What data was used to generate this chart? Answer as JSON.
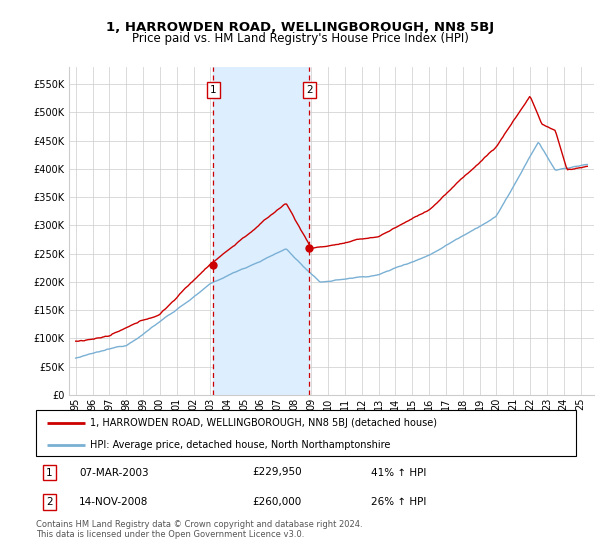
{
  "title": "1, HARROWDEN ROAD, WELLINGBOROUGH, NN8 5BJ",
  "subtitle": "Price paid vs. HM Land Registry's House Price Index (HPI)",
  "legend_line1": "1, HARROWDEN ROAD, WELLINGBOROUGH, NN8 5BJ (detached house)",
  "legend_line2": "HPI: Average price, detached house, North Northamptonshire",
  "footnote": "Contains HM Land Registry data © Crown copyright and database right 2024.\nThis data is licensed under the Open Government Licence v3.0.",
  "sale1_date": "07-MAR-2003",
  "sale1_price": 229950,
  "sale1_pct": "41% ↑ HPI",
  "sale2_date": "14-NOV-2008",
  "sale2_price": 260000,
  "sale2_pct": "26% ↑ HPI",
  "red_color": "#cc0000",
  "blue_color": "#7ab0d4",
  "shade_color": "#ddeeff",
  "grid_color": "#cccccc",
  "ylim": [
    0,
    580000
  ],
  "yticks": [
    0,
    50000,
    100000,
    150000,
    200000,
    250000,
    300000,
    350000,
    400000,
    450000,
    500000,
    550000
  ],
  "sale1_x": 2003.17,
  "sale2_x": 2008.87
}
